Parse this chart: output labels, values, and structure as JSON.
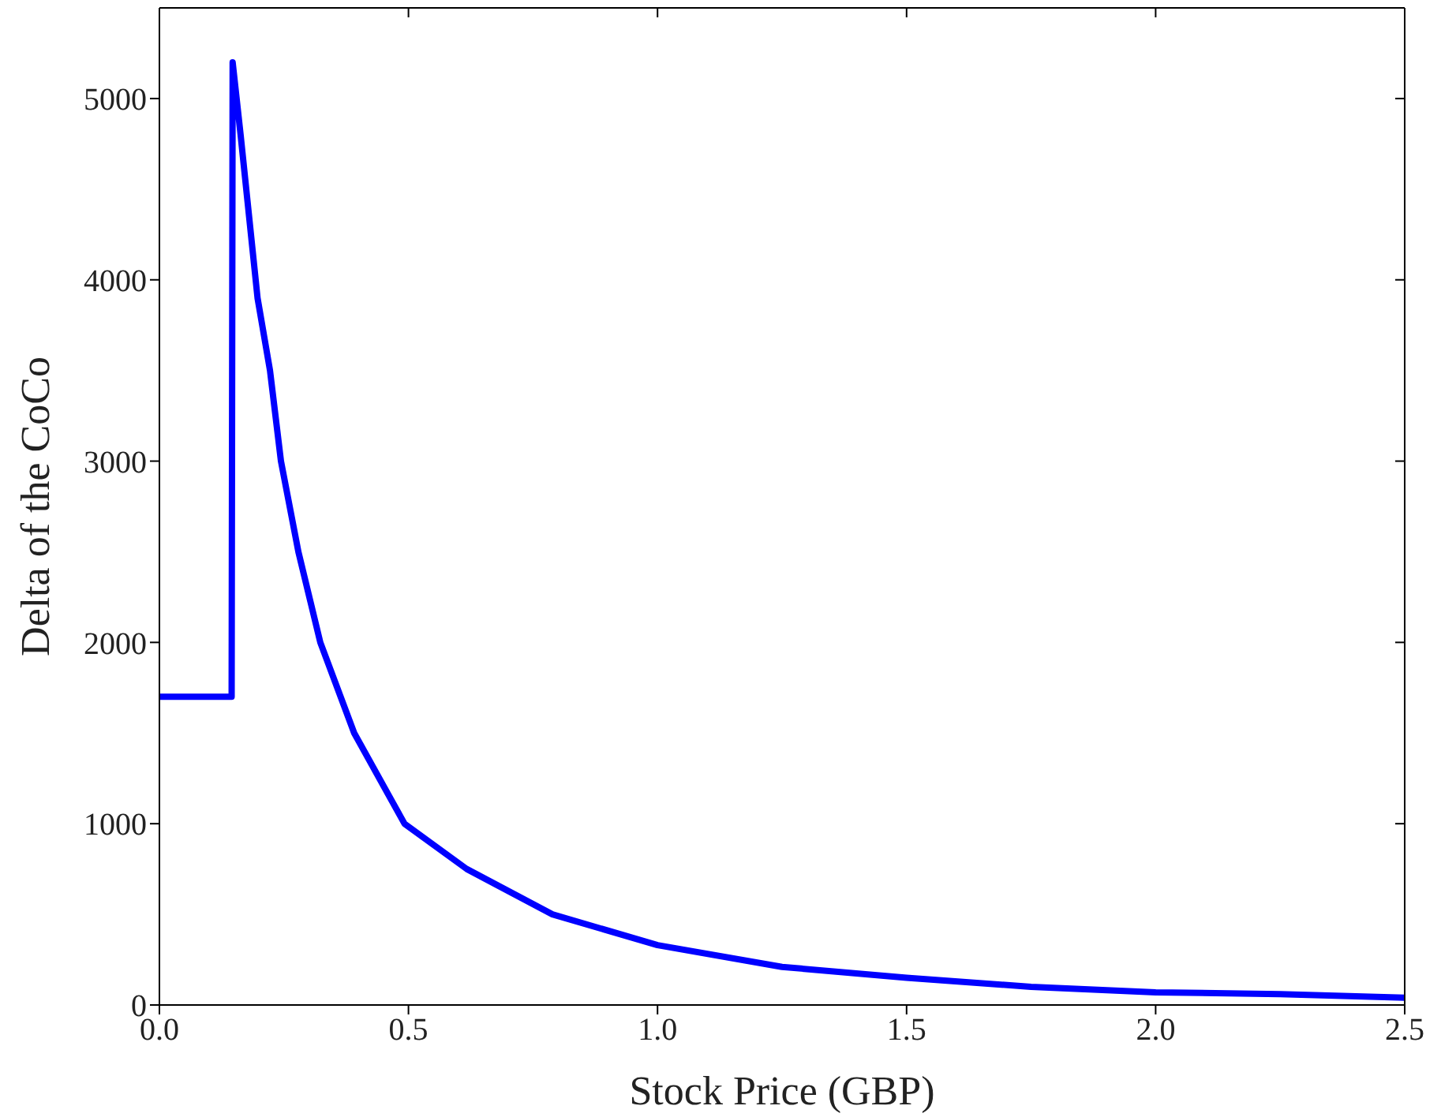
{
  "chart_data": {
    "type": "line",
    "xlabel": "Stock Price (GBP)",
    "ylabel": "Delta of the CoCo",
    "x": [
      0,
      0.145,
      0.147,
      0.163,
      0.197,
      0.222,
      0.244,
      0.279,
      0.323,
      0.391,
      0.492,
      0.617,
      0.789,
      1.0,
      1.25,
      1.5,
      1.75,
      2.0,
      2.25,
      2.5
    ],
    "series": [
      {
        "color": "#0000ff",
        "values": [
          1700,
          1700,
          5200,
          4800,
          3900,
          3500,
          3000,
          2500,
          2000,
          1500,
          1000,
          750,
          500,
          330,
          210,
          150,
          100,
          70,
          60,
          40
        ]
      }
    ],
    "xlim": [
      0,
      2.5
    ],
    "xticks": [
      {
        "value": 0,
        "label": "0.0"
      },
      {
        "value": 0.5,
        "label": "0.5"
      },
      {
        "value": 1,
        "label": "1.0"
      },
      {
        "value": 1.5,
        "label": "1.5"
      },
      {
        "value": 2,
        "label": "2.0"
      },
      {
        "value": 2.5,
        "label": "2.5"
      }
    ],
    "ylim": [
      0,
      5500
    ],
    "yticks": [
      0,
      1000,
      2000,
      3000,
      4000,
      5000
    ],
    "grid": false,
    "legend": false,
    "marker": "none",
    "line_style": "solid"
  }
}
